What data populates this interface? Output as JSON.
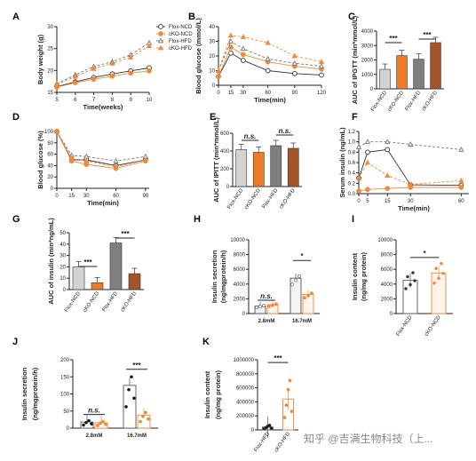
{
  "chart_data": [
    {
      "panel": "A",
      "type": "line",
      "xlabel": "Time(weeks)",
      "ylabel": "Body weight (g)",
      "xlim": [
        5,
        10
      ],
      "ylim": [
        15,
        30
      ],
      "xticks": [
        "5",
        "6",
        "7",
        "8",
        "9",
        "10"
      ],
      "yticks": [
        "15",
        "20",
        "25",
        "30"
      ],
      "x": [
        5,
        6,
        7,
        8,
        9,
        10
      ],
      "series": [
        {
          "name": "Flox-NCD",
          "values": [
            16.3,
            17.4,
            18.4,
            19.2,
            19.9,
            20.6
          ]
        },
        {
          "name": "cKO-NCD",
          "values": [
            16.2,
            17.2,
            18.0,
            18.7,
            19.4,
            19.9
          ]
        },
        {
          "name": "Flox-HFD",
          "values": [
            17.0,
            19.0,
            20.9,
            22.0,
            23.6,
            26.3
          ]
        },
        {
          "name": "cKO-HFD",
          "values": [
            16.8,
            18.6,
            20.4,
            21.6,
            23.0,
            25.6
          ]
        }
      ]
    },
    {
      "panel": "B",
      "type": "line",
      "xlabel": "Time(min)",
      "ylabel": "Blood glucose (mmol/L)",
      "xlim": [
        0,
        120
      ],
      "ylim": [
        0,
        40
      ],
      "xticks": [
        "0",
        "15",
        "30",
        "60",
        "90",
        "120"
      ],
      "yticks": [
        "0",
        "10",
        "20",
        "30",
        "40"
      ],
      "x": [
        0,
        15,
        30,
        60,
        90,
        120
      ],
      "series": [
        {
          "name": "Flox-NCD",
          "values": [
            6,
            22,
            17,
            10,
            8,
            7
          ]
        },
        {
          "name": "cKO-NCD",
          "values": [
            6,
            26,
            21,
            16,
            13,
            11
          ]
        },
        {
          "name": "Flox-HFD",
          "values": [
            10,
            30,
            25,
            18,
            15,
            13
          ]
        },
        {
          "name": "cKO-HFD",
          "values": [
            10,
            34,
            33,
            29,
            20,
            16
          ]
        }
      ]
    },
    {
      "panel": "C",
      "type": "bar",
      "ylabel": "AUC of IPGTT (min*mmol/L)",
      "ylim": [
        0,
        4000
      ],
      "yticks": [
        "0",
        "1000",
        "2000",
        "3000",
        "4000"
      ],
      "categories": [
        "Flox-NCD",
        "cKO-NCD",
        "Flox-HFD",
        "cKO-HFD"
      ],
      "values": [
        1350,
        2300,
        2050,
        3200
      ],
      "annotations": [
        "***",
        "***"
      ]
    },
    {
      "panel": "D",
      "type": "line",
      "xlabel": "Time(min)",
      "ylabel": "Blood glucose (%)",
      "xlim": [
        0,
        90
      ],
      "ylim": [
        0,
        100
      ],
      "xticks": [
        "0",
        "15",
        "30",
        "60",
        "90"
      ],
      "yticks": [
        "0",
        "20",
        "40",
        "60",
        "80",
        "100"
      ],
      "x": [
        0,
        15,
        30,
        60,
        90
      ],
      "series": [
        {
          "name": "Flox-NCD",
          "values": [
            100,
            50,
            50,
            40,
            50
          ]
        },
        {
          "name": "cKO-NCD",
          "values": [
            100,
            48,
            42,
            35,
            48
          ]
        },
        {
          "name": "Flox-HFD",
          "values": [
            100,
            58,
            56,
            48,
            56
          ]
        },
        {
          "name": "cKO-HFD",
          "values": [
            100,
            53,
            48,
            38,
            50
          ]
        }
      ]
    },
    {
      "panel": "E",
      "type": "bar",
      "ylabel": "AUC of IPITT (min*mmol/L)",
      "ylim": [
        0,
        600
      ],
      "yticks": [
        "0",
        "200",
        "400",
        "600"
      ],
      "categories": [
        "Flox-NCD",
        "cKO-NCD",
        "Flox-HFD",
        "cKO-HFD"
      ],
      "values": [
        415,
        385,
        460,
        430
      ],
      "annotations": [
        "n.s.",
        "n.s."
      ]
    },
    {
      "panel": "F",
      "type": "line",
      "xlabel": "Time(min)",
      "ylabel": "Serum insulin (ng/mL)",
      "xlim": [
        0,
        60
      ],
      "ylim": [
        0,
        1.2
      ],
      "xticks": [
        "0",
        "5",
        "15",
        "30",
        "60"
      ],
      "yticks": [
        "0.0",
        "0.2",
        "0.4",
        "0.6",
        "0.8",
        "1.0",
        "1.2"
      ],
      "x": [
        0,
        5,
        15,
        30,
        60
      ],
      "series": [
        {
          "name": "Flox-NCD",
          "values": [
            0.3,
            0.8,
            0.85,
            0.17,
            0.16
          ]
        },
        {
          "name": "cKO-NCD",
          "values": [
            0.05,
            0.08,
            0.1,
            0.12,
            0.12
          ]
        },
        {
          "name": "Flox-HFD",
          "values": [
            0.9,
            1.0,
            1.0,
            0.95,
            0.85
          ]
        },
        {
          "name": "cKO-HFD",
          "values": [
            0.3,
            0.6,
            0.35,
            0.18,
            0.25
          ]
        }
      ]
    },
    {
      "panel": "G",
      "type": "bar",
      "ylabel": "AUC of insulin (min*ng/mL)",
      "ylim": [
        0,
        50
      ],
      "yticks": [
        "0",
        "10",
        "20",
        "30",
        "40",
        "50"
      ],
      "categories": [
        "Flox-NCD",
        "cKO-NCD",
        "Flox-HFD",
        "cKO-HFD"
      ],
      "values": [
        20,
        6,
        41,
        14
      ],
      "annotations": [
        "***",
        "***"
      ]
    },
    {
      "panel": "H",
      "type": "bar",
      "ylabel": "Insulin secretion (ng/mgprotein/h)",
      "ylim": [
        0,
        10000
      ],
      "yticks": [
        "0",
        "2000",
        "4000",
        "6000",
        "8000",
        "10000"
      ],
      "categories": [
        "2.8mM",
        "16.7mM"
      ],
      "series": [
        {
          "values": [
            1000,
            4800
          ]
        },
        {
          "values": [
            1200,
            2600
          ]
        }
      ],
      "annotations": [
        "n.s.",
        "*"
      ]
    },
    {
      "panel": "I",
      "type": "bar",
      "ylabel": "Insulin content (ng/mg protein)",
      "ylim": [
        0,
        10000
      ],
      "yticks": [
        "0",
        "2000",
        "4000",
        "6000",
        "8000",
        "10000"
      ],
      "categories": [
        "Flox-NCD",
        "cKO-NCD"
      ],
      "values": [
        4500,
        5500
      ],
      "annotations": [
        "*"
      ]
    },
    {
      "panel": "J",
      "type": "bar",
      "ylabel": "Insulin secretion (ng/mgprotein/h)",
      "ylim": [
        0,
        200
      ],
      "yticks": [
        "0",
        "50",
        "100",
        "150",
        "200"
      ],
      "categories": [
        "2.8mM",
        "16.7mM"
      ],
      "series": [
        {
          "values": [
            18,
            125
          ]
        },
        {
          "values": [
            16,
            38
          ]
        }
      ],
      "annotations": [
        "n.s.",
        "***"
      ]
    },
    {
      "panel": "K",
      "type": "bar",
      "ylabel": "Insulin content (ng/mg protein)",
      "ylim": [
        0,
        1000000
      ],
      "yticks": [
        "0",
        "200000",
        "400000",
        "600000",
        "800000",
        "1000000"
      ],
      "categories": [
        "Flox-HFD",
        "cKO-HFD"
      ],
      "values": [
        40000,
        440000
      ],
      "annotations": [
        "***"
      ]
    }
  ],
  "colors": {
    "flox_ncd": "#d3d3d3",
    "cko_ncd": "#ef7b28",
    "flox_hfd": "#7f7f7f",
    "cko_hfd": "#a4542a",
    "axis": "#222222",
    "line_ncd": "#333333",
    "line_cko": "#ef8a3c"
  },
  "watermark": "知乎 @吉满生物科技（上..."
}
